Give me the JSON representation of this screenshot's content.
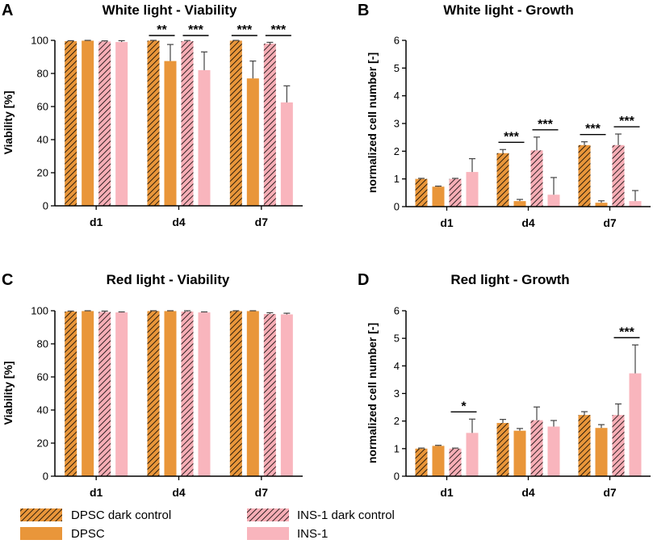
{
  "figure": {
    "series_meta": [
      {
        "name": "DPSC dark control",
        "color": "#E9963A",
        "hatch": true
      },
      {
        "name": "DPSC",
        "color": "#E9963A",
        "hatch": false
      },
      {
        "name": "INS-1 dark control",
        "color": "#F7AEB6",
        "hatch": true
      },
      {
        "name": "INS-1",
        "color": "#F9B5BD",
        "hatch": false
      }
    ],
    "legend": [
      {
        "label": "DPSC dark control"
      },
      {
        "label": "INS-1 dark control"
      },
      {
        "label": "DPSC"
      },
      {
        "label": "INS-1"
      }
    ]
  },
  "chart_data": [
    {
      "letter": "A",
      "type": "bar",
      "title": "White light - Viability",
      "ylabel": "Viability [%]",
      "xlabel": "",
      "ylim": [
        0,
        100
      ],
      "yticks": [
        0,
        20,
        40,
        60,
        80,
        100
      ],
      "categories": [
        "d1",
        "d4",
        "d7"
      ],
      "series": [
        {
          "name": "DPSC dark control",
          "values": [
            99.5,
            99.8,
            99.8
          ],
          "errors": [
            0.3,
            0.2,
            0.2
          ]
        },
        {
          "name": "DPSC",
          "values": [
            99.8,
            87.5,
            77.0
          ],
          "errors": [
            0.2,
            10.0,
            10.5
          ]
        },
        {
          "name": "INS-1 dark control",
          "values": [
            99.3,
            99.5,
            98.0
          ],
          "errors": [
            0.4,
            0.4,
            0.8
          ]
        },
        {
          "name": "INS-1",
          "values": [
            99.0,
            82.0,
            62.5
          ],
          "errors": [
            0.8,
            11.0,
            10.0
          ]
        }
      ],
      "significance": [
        {
          "category": 1,
          "from": 0,
          "to": 1,
          "label": "**"
        },
        {
          "category": 1,
          "from": 2,
          "to": 3,
          "label": "***"
        },
        {
          "category": 2,
          "from": 0,
          "to": 1,
          "label": "***"
        },
        {
          "category": 2,
          "from": 2,
          "to": 3,
          "label": "***"
        }
      ]
    },
    {
      "letter": "B",
      "type": "bar",
      "title": "White light - Growth",
      "ylabel": "normalized cell number [-]",
      "xlabel": "",
      "ylim": [
        0,
        6
      ],
      "yticks": [
        0,
        1,
        2,
        3,
        4,
        5,
        6
      ],
      "categories": [
        "d1",
        "d4",
        "d7"
      ],
      "series": [
        {
          "name": "DPSC dark control",
          "values": [
            1.0,
            1.93,
            2.22
          ],
          "errors": [
            0.02,
            0.13,
            0.12
          ]
        },
        {
          "name": "DPSC",
          "values": [
            0.72,
            0.2,
            0.14
          ],
          "errors": [
            0.02,
            0.06,
            0.07
          ]
        },
        {
          "name": "INS-1 dark control",
          "values": [
            1.0,
            2.03,
            2.22
          ],
          "errors": [
            0.02,
            0.48,
            0.4
          ]
        },
        {
          "name": "INS-1",
          "values": [
            1.25,
            0.43,
            0.2
          ],
          "errors": [
            0.48,
            0.62,
            0.38
          ]
        }
      ],
      "significance": [
        {
          "category": 1,
          "from": 0,
          "to": 1,
          "label": "***"
        },
        {
          "category": 1,
          "from": 2,
          "to": 3,
          "label": "***"
        },
        {
          "category": 2,
          "from": 0,
          "to": 1,
          "label": "***"
        },
        {
          "category": 2,
          "from": 2,
          "to": 3,
          "label": "***"
        }
      ]
    },
    {
      "letter": "C",
      "type": "bar",
      "title": "Red light - Viability",
      "ylabel": "Viability [%]",
      "xlabel": "",
      "ylim": [
        0,
        100
      ],
      "yticks": [
        0,
        20,
        40,
        60,
        80,
        100
      ],
      "categories": [
        "d1",
        "d4",
        "d7"
      ],
      "series": [
        {
          "name": "DPSC dark control",
          "values": [
            99.5,
            99.8,
            99.8
          ],
          "errors": [
            0.3,
            0.2,
            0.2
          ]
        },
        {
          "name": "DPSC",
          "values": [
            99.8,
            99.8,
            99.8
          ],
          "errors": [
            0.2,
            0.2,
            0.2
          ]
        },
        {
          "name": "INS-1 dark control",
          "values": [
            99.3,
            99.5,
            98.0
          ],
          "errors": [
            0.5,
            0.5,
            0.8
          ]
        },
        {
          "name": "INS-1",
          "values": [
            99.0,
            99.0,
            97.8
          ],
          "errors": [
            0.3,
            0.3,
            0.7
          ]
        }
      ],
      "significance": []
    },
    {
      "letter": "D",
      "type": "bar",
      "title": "Red light - Growth",
      "ylabel": "normalized cell number [-]",
      "xlabel": "",
      "ylim": [
        0,
        6
      ],
      "yticks": [
        0,
        1,
        2,
        3,
        4,
        5,
        6
      ],
      "categories": [
        "d1",
        "d4",
        "d7"
      ],
      "series": [
        {
          "name": "DPSC dark control",
          "values": [
            1.0,
            1.93,
            2.22
          ],
          "errors": [
            0.02,
            0.13,
            0.12
          ]
        },
        {
          "name": "DPSC",
          "values": [
            1.1,
            1.65,
            1.75
          ],
          "errors": [
            0.02,
            0.08,
            0.12
          ]
        },
        {
          "name": "INS-1 dark control",
          "values": [
            1.0,
            2.03,
            2.22
          ],
          "errors": [
            0.02,
            0.48,
            0.4
          ]
        },
        {
          "name": "INS-1",
          "values": [
            1.57,
            1.8,
            3.73
          ],
          "errors": [
            0.5,
            0.22,
            1.03
          ]
        }
      ],
      "significance": [
        {
          "category": 0,
          "from": 2,
          "to": 3,
          "label": "*"
        },
        {
          "category": 2,
          "from": 2,
          "to": 3,
          "label": "***"
        }
      ]
    }
  ]
}
